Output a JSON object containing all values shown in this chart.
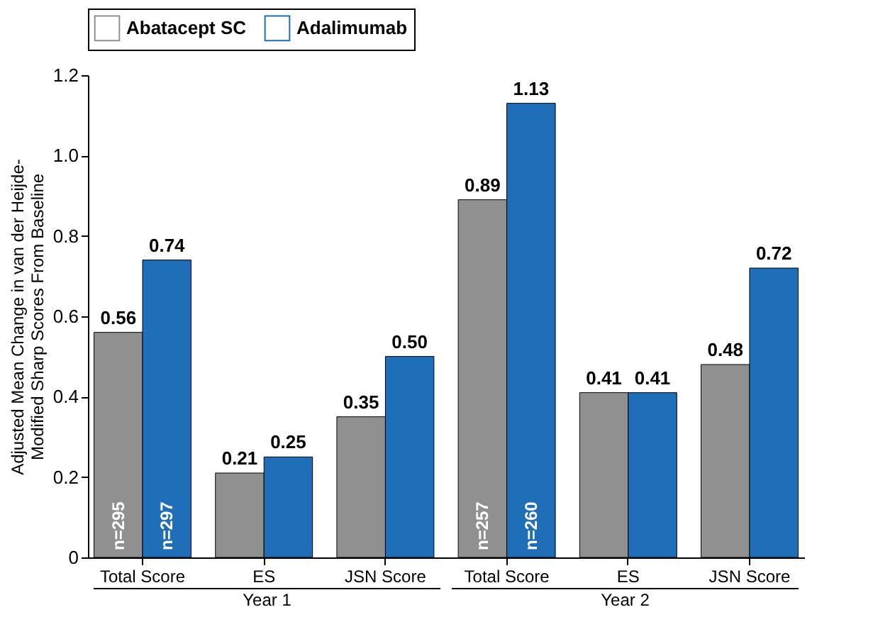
{
  "chart_data": {
    "type": "bar",
    "ylabel": "Adjusted Mean Change in van der Heijde-Modified Sharp Scores From Baseline",
    "categories": [
      "Total Score",
      "ES",
      "JSN Score",
      "Total Score",
      "ES",
      "JSN Score"
    ],
    "series": [
      {
        "name": "Abatacept SC",
        "color": "#909090",
        "values": [
          0.56,
          0.21,
          0.35,
          0.89,
          0.41,
          0.48
        ],
        "value_labels": [
          "0.56",
          "0.21",
          "0.35",
          "0.89",
          "0.41",
          "0.48"
        ]
      },
      {
        "name": "Adalimumab",
        "color": "#1f6fb8",
        "values": [
          0.74,
          0.25,
          0.5,
          1.13,
          0.41,
          0.72
        ],
        "value_labels": [
          "0.74",
          "0.25",
          "0.50",
          "1.13",
          "0.41",
          "0.72"
        ]
      }
    ],
    "ylim": [
      0,
      1.2
    ],
    "yticks": [
      0,
      0.2,
      0.4,
      0.6,
      0.8,
      {
        "value": 1.0,
        "label": "1.0"
      },
      1.2
    ],
    "grid": false,
    "legend": "top",
    "annotations": [
      "n=295",
      "n=297",
      "n=257",
      "n=260",
      "Year 1",
      "Year 2"
    ]
  }
}
